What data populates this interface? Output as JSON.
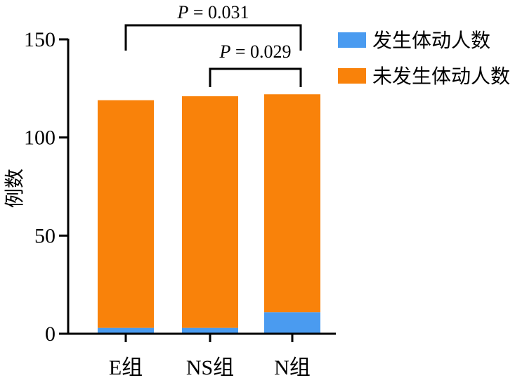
{
  "chart_data": {
    "type": "bar",
    "stacked": true,
    "categories": [
      "E组",
      "NS组",
      "N组"
    ],
    "series": [
      {
        "name": "发生体动人数",
        "color": "#4a9bf0",
        "values": [
          3,
          3,
          11
        ]
      },
      {
        "name": "未发生体动人数",
        "color": "#f9820a",
        "values": [
          116,
          118,
          111
        ]
      }
    ],
    "ylabel": "例数",
    "ylim": [
      0,
      150
    ],
    "yticks": [
      0,
      50,
      100,
      150
    ],
    "grid": false,
    "legend_position": "top-right",
    "annotations": [
      {
        "text_italic": "P",
        "text_rest": " = 0.031",
        "from": "E组",
        "to": "N组"
      },
      {
        "text_italic": "P",
        "text_rest": " = 0.029",
        "from": "NS组",
        "to": "N组"
      }
    ]
  }
}
